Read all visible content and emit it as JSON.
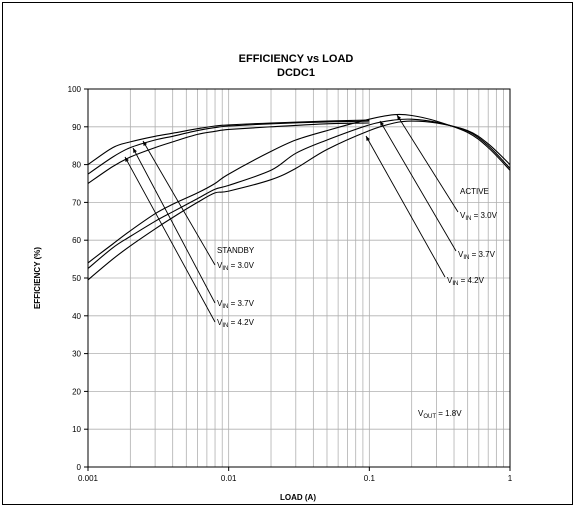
{
  "chart_data": {
    "type": "line",
    "title": "EFFICIENCY vs LOAD",
    "subtitle": "DCDC1",
    "xlabel": "LOAD (A)",
    "ylabel": "EFFICIENCY (%)",
    "x_scale": "log",
    "xlim": [
      0.001,
      1
    ],
    "ylim": [
      0,
      100
    ],
    "x_ticks": [
      "0.001",
      "0.01",
      "0.1",
      "1"
    ],
    "y_ticks": [
      "0",
      "10",
      "20",
      "30",
      "40",
      "50",
      "60",
      "70",
      "80",
      "90",
      "100"
    ],
    "grid": true,
    "series": [
      {
        "mode": "standby",
        "x": [
          0.001,
          0.0015,
          0.002,
          0.003,
          0.004,
          0.006,
          0.008,
          0.01,
          0.02,
          0.05,
          0.1
        ],
        "y": [
          80,
          84.5,
          86,
          87.5,
          88.3,
          89.5,
          90.2,
          90.5,
          91,
          91.5,
          91.8
        ]
      },
      {
        "mode": "standby",
        "x": [
          0.001,
          0.0015,
          0.002,
          0.003,
          0.004,
          0.006,
          0.008,
          0.01,
          0.02,
          0.05,
          0.1
        ],
        "y": [
          77.5,
          82,
          84.5,
          86.5,
          87.5,
          89,
          89.8,
          90.2,
          90.8,
          91.3,
          91.5
        ]
      },
      {
        "mode": "standby",
        "x": [
          0.001,
          0.0015,
          0.002,
          0.003,
          0.004,
          0.006,
          0.008,
          0.01,
          0.02,
          0.05,
          0.1
        ],
        "y": [
          75,
          79.5,
          82,
          84.5,
          86,
          88,
          88.8,
          89.3,
          90,
          90.8,
          91
        ]
      },
      {
        "mode": "active",
        "x": [
          0.001,
          0.0015,
          0.002,
          0.003,
          0.004,
          0.006,
          0.008,
          0.01,
          0.02,
          0.03,
          0.05,
          0.1,
          0.15,
          0.2,
          0.3,
          0.5,
          0.7,
          1
        ],
        "y": [
          54,
          59,
          62.5,
          67,
          69.5,
          72.5,
          75,
          77.5,
          83.5,
          86.5,
          89,
          92,
          93.2,
          93,
          91.5,
          88.5,
          84.5,
          78.5
        ]
      },
      {
        "mode": "active",
        "x": [
          0.001,
          0.0015,
          0.002,
          0.003,
          0.004,
          0.006,
          0.008,
          0.01,
          0.02,
          0.03,
          0.05,
          0.1,
          0.15,
          0.2,
          0.3,
          0.5,
          0.7,
          1
        ],
        "y": [
          52.5,
          58,
          61,
          65,
          67.5,
          71,
          73.5,
          74.5,
          78.5,
          83,
          86.5,
          90.5,
          91.8,
          92,
          91.2,
          88.8,
          85,
          79
        ]
      },
      {
        "mode": "active",
        "x": [
          0.001,
          0.0015,
          0.002,
          0.003,
          0.004,
          0.006,
          0.008,
          0.01,
          0.02,
          0.03,
          0.05,
          0.1,
          0.15,
          0.2,
          0.3,
          0.5,
          0.7,
          1
        ],
        "y": [
          49.5,
          55,
          58.5,
          63,
          66,
          70,
          72.5,
          73,
          76,
          79,
          84,
          89,
          91,
          91.5,
          91,
          89,
          85.5,
          80
        ]
      }
    ],
    "annotations": {
      "standby": {
        "title": "STANDBY",
        "labels": [
          {
            "prefix": "V",
            "sub": "IN",
            "value": " = 3.0V"
          },
          {
            "prefix": "V",
            "sub": "IN",
            "value": " = 3.7V"
          },
          {
            "prefix": "V",
            "sub": "IN",
            "value": " = 4.2V"
          }
        ]
      },
      "active": {
        "title": "ACTIVE",
        "labels": [
          {
            "prefix": "V",
            "sub": "IN",
            "value": " = 3.0V"
          },
          {
            "prefix": "V",
            "sub": "IN",
            "value": " = 3.7V"
          },
          {
            "prefix": "V",
            "sub": "IN",
            "value": " = 4.2V"
          }
        ]
      },
      "vout": {
        "prefix": "V",
        "sub": "OUT",
        "value": " = 1.8V"
      }
    }
  }
}
